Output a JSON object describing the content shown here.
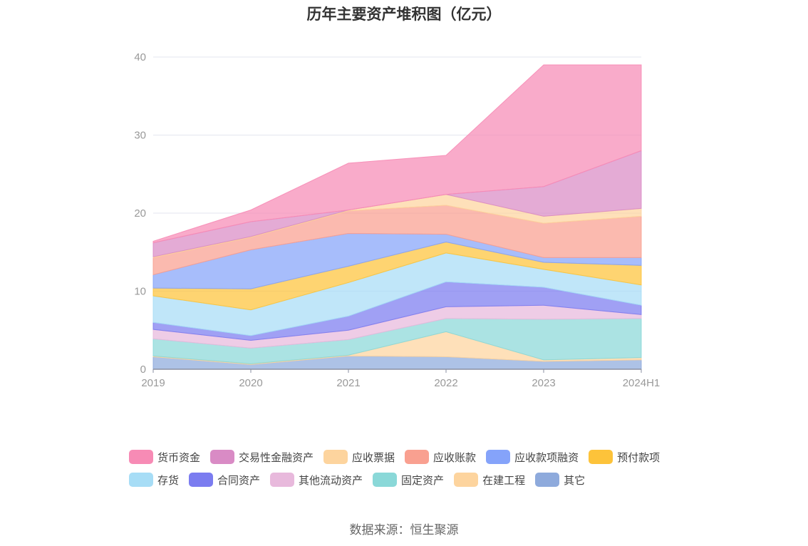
{
  "chart_data": {
    "type": "area",
    "title": "历年主要资产堆积图（亿元）",
    "categories": [
      "2019",
      "2020",
      "2021",
      "2022",
      "2023",
      "2024H1"
    ],
    "ylim": [
      0,
      40
    ],
    "yticks": [
      "0",
      "10",
      "20",
      "30",
      "40"
    ],
    "stacked": true,
    "grid": true,
    "legend_position": "bottom",
    "series": [
      {
        "name": "其它",
        "color": "#8eaadc",
        "values": [
          1.6,
          0.6,
          1.7,
          1.6,
          1.0,
          1.2
        ]
      },
      {
        "name": "在建工程",
        "color": "#fdd49e",
        "values": [
          0.1,
          0.1,
          0.1,
          3.2,
          0.2,
          0.3
        ]
      },
      {
        "name": "固定资产",
        "color": "#8ad8d8",
        "values": [
          2.2,
          2.0,
          2.0,
          1.7,
          5.2,
          5.0
        ]
      },
      {
        "name": "其他流动资产",
        "color": "#e8b9dc",
        "values": [
          1.2,
          1.0,
          1.2,
          1.5,
          1.8,
          0.5
        ]
      },
      {
        "name": "合同资产",
        "color": "#7b7cf0",
        "values": [
          0.9,
          0.6,
          1.8,
          3.2,
          2.3,
          1.2
        ]
      },
      {
        "name": "存货",
        "color": "#a7ddf6",
        "values": [
          3.4,
          3.3,
          4.3,
          3.7,
          2.3,
          2.6
        ]
      },
      {
        "name": "预付款项",
        "color": "#fdc33a",
        "values": [
          1.0,
          2.7,
          2.1,
          1.4,
          0.9,
          2.5
        ]
      },
      {
        "name": "应收款项融资",
        "color": "#85a3fa",
        "values": [
          1.7,
          5.0,
          4.2,
          1.0,
          0.6,
          1.0
        ]
      },
      {
        "name": "应收账款",
        "color": "#f9a090",
        "values": [
          2.2,
          1.6,
          2.9,
          3.7,
          4.4,
          5.3
        ]
      },
      {
        "name": "应收票据",
        "color": "#fdd49e",
        "values": [
          0.1,
          0.1,
          0.1,
          1.4,
          0.9,
          1.0
        ]
      },
      {
        "name": "交易性金融资产",
        "color": "#d98bc5",
        "values": [
          1.8,
          1.9,
          0.0,
          0.0,
          3.8,
          7.4
        ]
      },
      {
        "name": "货币资金",
        "color": "#f78bb5",
        "values": [
          0.2,
          1.5,
          6.0,
          5.0,
          15.6,
          11.0
        ]
      }
    ]
  },
  "legend": {
    "row1": [
      {
        "label": "货币资金",
        "color": "#f78bb5"
      },
      {
        "label": "交易性金融资产",
        "color": "#d98bc5"
      },
      {
        "label": "应收票据",
        "color": "#fdd49e"
      },
      {
        "label": "应收账款",
        "color": "#f9a090"
      },
      {
        "label": "应收款项融资",
        "color": "#85a3fa"
      },
      {
        "label": "预付款项",
        "color": "#fdc33a"
      }
    ],
    "row2": [
      {
        "label": "存货",
        "color": "#a7ddf6"
      },
      {
        "label": "合同资产",
        "color": "#7b7cf0"
      },
      {
        "label": "其他流动资产",
        "color": "#e8b9dc"
      },
      {
        "label": "固定资产",
        "color": "#8ad8d8"
      },
      {
        "label": "在建工程",
        "color": "#fdd49e"
      },
      {
        "label": "其它",
        "color": "#8eaadc"
      }
    ]
  },
  "source": "数据来源：恒生聚源"
}
